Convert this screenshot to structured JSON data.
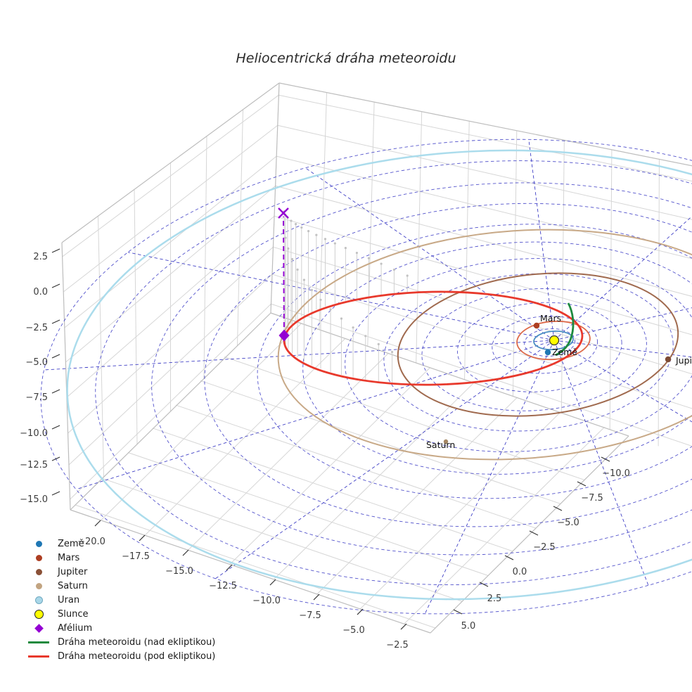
{
  "title": {
    "text": "Heliocentrická dráha meteoroidu"
  },
  "chart_data": {
    "type": "line",
    "subtype": "3d-orbit-plot",
    "title": "Heliocentrická dráha meteoroidu",
    "grid": {
      "ecliptic_polar_grid": true,
      "polar_grid_color": "#4040c6",
      "pane_grid_color": "#d6d6d6",
      "pane_edge_color": "#bdbdbd",
      "radial_line_count": 12,
      "dashed": true
    },
    "axes": {
      "x_tick_labels": [
        "−20.0",
        "−17.5",
        "−15.0",
        "−12.5",
        "−10.0",
        "−7.5",
        "−5.0",
        "−2.5"
      ],
      "y_tick_labels": [
        "−10.0",
        "−7.5",
        "−5.0",
        "−2.5",
        "0.0",
        "2.5",
        "5.0"
      ],
      "z_tick_labels": [
        "2.5",
        "0.0",
        "−2.5",
        "−5.0",
        "−7.5",
        "−10.0",
        "−12.5",
        "−15.0"
      ],
      "tick_color": "#3c3c3c"
    },
    "bodies": [
      {
        "name": "Země",
        "marker_color": "#1f77b4",
        "orbit_color": "#4a8ec2",
        "annotated": true
      },
      {
        "name": "Mars",
        "marker_color": "#ad3e22",
        "orbit_color": "#dd6a4a",
        "annotated": true
      },
      {
        "name": "Jupiter",
        "marker_color": "#7d4b35",
        "orbit_color": "#a06a4e",
        "annotated": true
      },
      {
        "name": "Saturn",
        "marker_color": "#a58763",
        "orbit_color": "#c8a987",
        "annotated": true
      },
      {
        "name": "Uran",
        "marker_color": "#a9d7e8",
        "orbit_color": "#abdcec",
        "annotated": false
      },
      {
        "name": "Slunce",
        "marker_color": "#ffff00",
        "edge_color": "#333333",
        "annotated": false
      }
    ],
    "trajectory": {
      "above_ecliptic": {
        "label": "Dráha meteoroidu (nad ekliptikou)",
        "color": "#1d8a3e"
      },
      "below_ecliptic": {
        "label": "Dráha meteoroidu (pod ekliptikou)",
        "color": "#e8392c"
      },
      "projection_stem_color": "#d0d0d0"
    },
    "aphelion": {
      "label": "Afélium",
      "color": "#9400d3",
      "marker": "diamond",
      "projection_marker": "x"
    }
  },
  "annotations": {
    "mars": "Mars",
    "zeme": "Země",
    "saturn": "Saturn",
    "jupiter": "Jupiter"
  },
  "legend": {
    "items": [
      {
        "label": "Země",
        "marker": "dot",
        "color": "#1f77b4"
      },
      {
        "label": "Mars",
        "marker": "dot",
        "color": "#ad3e22"
      },
      {
        "label": "Jupiter",
        "marker": "dot",
        "color": "#8a5137"
      },
      {
        "label": "Saturn",
        "marker": "dot",
        "color": "#c2a481"
      },
      {
        "label": "Uran",
        "marker": "dot",
        "color": "#a9d7e8",
        "edge": "#6fa9c0"
      },
      {
        "label": "Slunce",
        "marker": "dot-big",
        "color": "#ffff00"
      },
      {
        "label": "Afélium",
        "marker": "diamond",
        "color": "#9400d3"
      },
      {
        "label": "Dráha meteoroidu (nad ekliptikou)",
        "marker": "line",
        "color": "#1d8a3e"
      },
      {
        "label": "Dráha meteoroidu (pod ekliptikou)",
        "marker": "line",
        "color": "#e8392c"
      }
    ]
  }
}
